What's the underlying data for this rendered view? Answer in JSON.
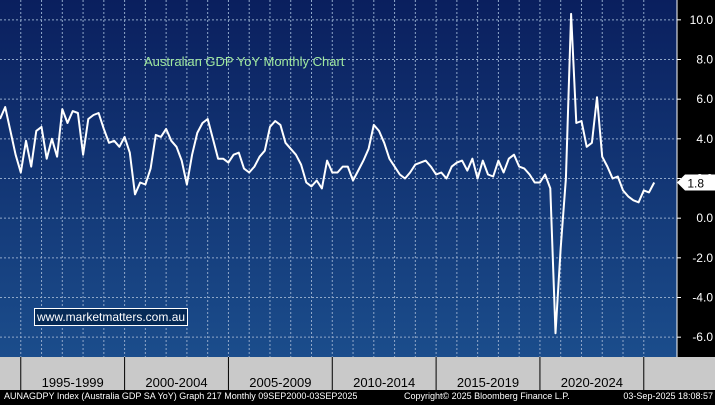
{
  "chart_data": {
    "type": "line",
    "title": "Australian GDP YoY Monthly Chart",
    "xlabel": "",
    "ylabel": "",
    "ylim": [
      -7,
      11
    ],
    "y_ticks": [
      10.0,
      8.0,
      6.0,
      4.0,
      2.0,
      0.0,
      -2.0,
      -4.0,
      -6.0
    ],
    "y_tick_labels": [
      "10.0",
      "8.0",
      "6.0",
      "4.0",
      "2.0",
      "0.0",
      "-2.0",
      "-4.0",
      "-6.0"
    ],
    "x_categories": [
      "1995-1999",
      "2000-2004",
      "2005-2009",
      "2010-2014",
      "2015-2019",
      "2020-2024"
    ],
    "last_value_label": "1.8",
    "grid": true,
    "series": [
      {
        "color": "#ffffff",
        "points": [
          [
            1994.0,
            5.0
          ],
          [
            1994.25,
            5.6
          ],
          [
            1994.5,
            4.4
          ],
          [
            1994.75,
            3.2
          ],
          [
            1995.0,
            2.3
          ],
          [
            1995.25,
            3.9
          ],
          [
            1995.5,
            2.6
          ],
          [
            1995.75,
            4.4
          ],
          [
            1996.0,
            4.6
          ],
          [
            1996.25,
            3.0
          ],
          [
            1996.5,
            4.0
          ],
          [
            1996.75,
            3.1
          ],
          [
            1997.0,
            5.5
          ],
          [
            1997.25,
            4.8
          ],
          [
            1997.5,
            5.4
          ],
          [
            1997.75,
            5.3
          ],
          [
            1998.0,
            3.2
          ],
          [
            1998.25,
            5.0
          ],
          [
            1998.5,
            5.2
          ],
          [
            1998.75,
            5.3
          ],
          [
            1999.0,
            4.5
          ],
          [
            1999.25,
            3.8
          ],
          [
            1999.5,
            3.9
          ],
          [
            1999.75,
            3.6
          ],
          [
            2000.0,
            4.1
          ],
          [
            2000.25,
            3.3
          ],
          [
            2000.5,
            1.2
          ],
          [
            2000.75,
            1.8
          ],
          [
            2001.0,
            1.7
          ],
          [
            2001.25,
            2.5
          ],
          [
            2001.5,
            4.2
          ],
          [
            2001.75,
            4.1
          ],
          [
            2002.0,
            4.5
          ],
          [
            2002.25,
            3.9
          ],
          [
            2002.5,
            3.6
          ],
          [
            2002.75,
            2.9
          ],
          [
            2003.0,
            1.7
          ],
          [
            2003.25,
            3.2
          ],
          [
            2003.5,
            4.3
          ],
          [
            2003.75,
            4.8
          ],
          [
            2004.0,
            5.0
          ],
          [
            2004.25,
            4.0
          ],
          [
            2004.5,
            3.0
          ],
          [
            2004.75,
            3.0
          ],
          [
            2005.0,
            2.8
          ],
          [
            2005.25,
            3.2
          ],
          [
            2005.5,
            3.3
          ],
          [
            2005.75,
            2.5
          ],
          [
            2006.0,
            2.3
          ],
          [
            2006.25,
            2.6
          ],
          [
            2006.5,
            3.1
          ],
          [
            2006.75,
            3.4
          ],
          [
            2007.0,
            4.6
          ],
          [
            2007.25,
            4.9
          ],
          [
            2007.5,
            4.7
          ],
          [
            2007.75,
            3.8
          ],
          [
            2008.0,
            3.5
          ],
          [
            2008.25,
            3.2
          ],
          [
            2008.5,
            2.7
          ],
          [
            2008.75,
            1.8
          ],
          [
            2009.0,
            1.6
          ],
          [
            2009.25,
            1.9
          ],
          [
            2009.5,
            1.5
          ],
          [
            2009.75,
            2.9
          ],
          [
            2010.0,
            2.3
          ],
          [
            2010.25,
            2.3
          ],
          [
            2010.5,
            2.6
          ],
          [
            2010.75,
            2.6
          ],
          [
            2011.0,
            1.9
          ],
          [
            2011.25,
            2.4
          ],
          [
            2011.5,
            2.9
          ],
          [
            2011.75,
            3.5
          ],
          [
            2012.0,
            4.7
          ],
          [
            2012.25,
            4.4
          ],
          [
            2012.5,
            3.8
          ],
          [
            2012.75,
            3.0
          ],
          [
            2013.0,
            2.6
          ],
          [
            2013.25,
            2.2
          ],
          [
            2013.5,
            2.0
          ],
          [
            2013.75,
            2.3
          ],
          [
            2014.0,
            2.7
          ],
          [
            2014.25,
            2.8
          ],
          [
            2014.5,
            2.9
          ],
          [
            2014.75,
            2.6
          ],
          [
            2015.0,
            2.2
          ],
          [
            2015.25,
            2.3
          ],
          [
            2015.5,
            2.0
          ],
          [
            2015.75,
            2.6
          ],
          [
            2016.0,
            2.8
          ],
          [
            2016.25,
            2.9
          ],
          [
            2016.5,
            2.4
          ],
          [
            2016.75,
            3.0
          ],
          [
            2017.0,
            2.0
          ],
          [
            2017.25,
            2.9
          ],
          [
            2017.5,
            2.2
          ],
          [
            2017.75,
            2.1
          ],
          [
            2018.0,
            2.9
          ],
          [
            2018.25,
            2.3
          ],
          [
            2018.5,
            3.0
          ],
          [
            2018.75,
            3.2
          ],
          [
            2019.0,
            2.6
          ],
          [
            2019.25,
            2.5
          ],
          [
            2019.5,
            2.2
          ],
          [
            2019.75,
            1.8
          ],
          [
            2020.0,
            1.8
          ],
          [
            2020.25,
            2.2
          ],
          [
            2020.5,
            1.5
          ],
          [
            2020.75,
            -5.8
          ],
          [
            2021.0,
            -1.5
          ],
          [
            2021.25,
            2.0
          ],
          [
            2021.5,
            10.3
          ],
          [
            2021.75,
            4.8
          ],
          [
            2022.0,
            4.9
          ],
          [
            2022.25,
            3.6
          ],
          [
            2022.5,
            3.8
          ],
          [
            2022.75,
            6.1
          ],
          [
            2023.0,
            3.1
          ],
          [
            2023.25,
            2.6
          ],
          [
            2023.5,
            2.0
          ],
          [
            2023.75,
            2.1
          ],
          [
            2024.0,
            1.4
          ],
          [
            2024.25,
            1.1
          ],
          [
            2024.5,
            0.9
          ],
          [
            2024.75,
            0.8
          ],
          [
            2025.0,
            1.4
          ],
          [
            2025.25,
            1.3
          ],
          [
            2025.5,
            1.8
          ]
        ]
      }
    ]
  },
  "footer": {
    "left": "AUNAGDPY Index (Australia GDP SA YoY) Graph 217  Monthly 09SEP2000-03SEP2025",
    "mid": "Copyright© 2025 Bloomberg Finance L.P.",
    "right": "03-Sep-2025 18:08:57"
  },
  "watermark": "www.marketmatters.com.au"
}
